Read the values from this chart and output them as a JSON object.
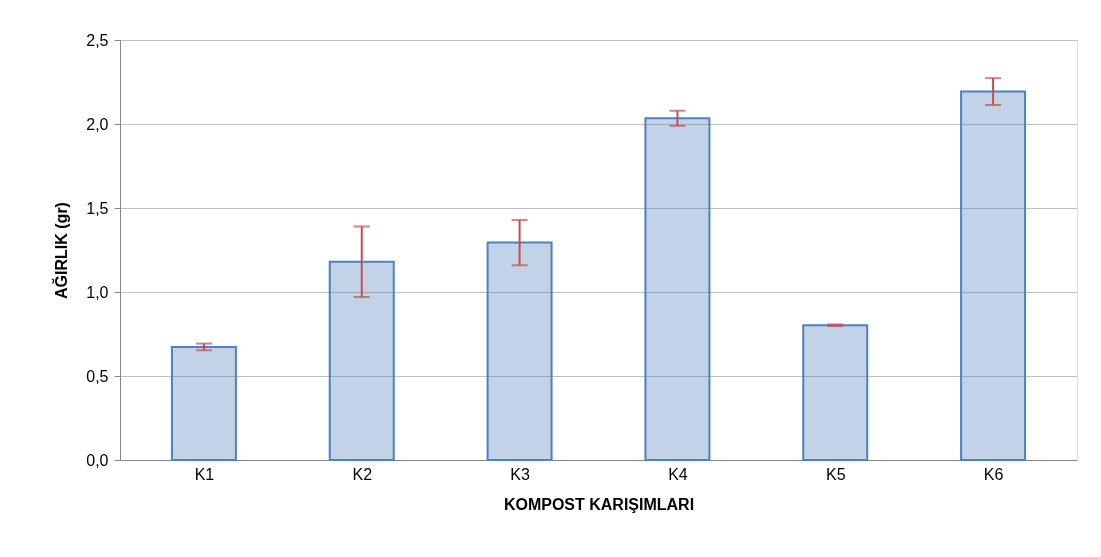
{
  "chart_data": {
    "type": "bar",
    "xlabel": "KOMPOST KARIŞIMLARI",
    "ylabel": "AĞIRLIK (gr)",
    "categories": [
      "K1",
      "K2",
      "K3",
      "K4",
      "K5",
      "K6"
    ],
    "values": [
      0.673,
      1.18,
      1.294,
      2.034,
      0.802,
      2.193
    ],
    "errors": [
      0.02,
      0.21,
      0.135,
      0.045,
      0.005,
      0.08
    ],
    "color": "#4f81bd",
    "ylim": [
      0,
      2.5
    ],
    "yticks": [
      {
        "value": 0,
        "label": "0,0"
      },
      {
        "value": 0.5,
        "label": "0,5"
      },
      {
        "value": 1,
        "label": "1,0"
      },
      {
        "value": 1.5,
        "label": "1,5"
      },
      {
        "value": 2,
        "label": "2,0"
      },
      {
        "value": 2.5,
        "label": "2,5"
      }
    ],
    "grid": "y"
  }
}
